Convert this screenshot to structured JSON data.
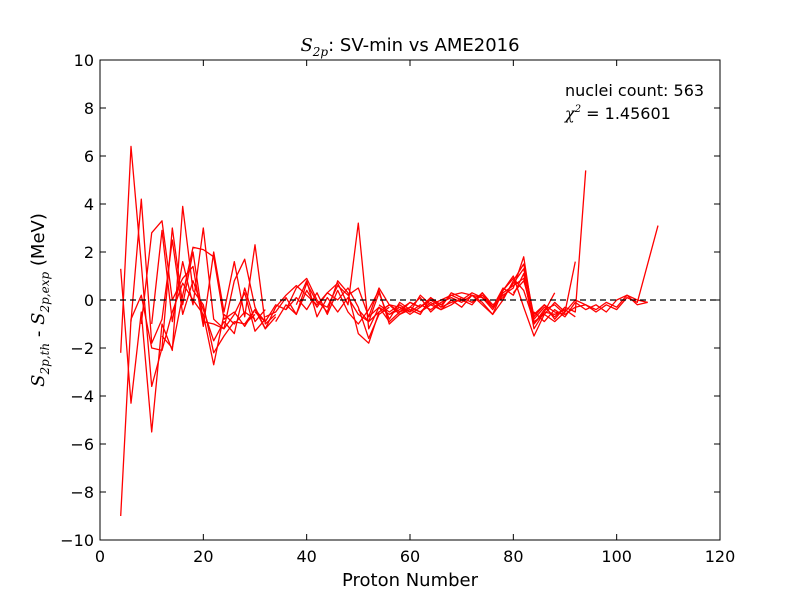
{
  "chart_data": {
    "type": "line",
    "title_symbol": "S",
    "title_symbol_sub": "2p",
    "title": "SV-min vs AME2016",
    "xlabel": "Proton Number",
    "ylabel_symbol": "S",
    "ylabel_sub_th": "2p,th",
    "ylabel_sub_exp": "2p,exp",
    "ylabel_unit": "(MeV)",
    "xlim": [
      0,
      120
    ],
    "ylim": [
      -10,
      10
    ],
    "xticks": [
      0,
      20,
      40,
      60,
      80,
      100,
      120
    ],
    "yticks": [
      -10,
      -8,
      -6,
      -4,
      -2,
      0,
      2,
      4,
      6,
      8,
      10
    ],
    "reference_line": 0,
    "annotations": {
      "count": "nuclei count: 563",
      "chi2_symbol": "χ",
      "chi2_power": "2",
      "chi2_value": "= 1.45601"
    },
    "series_color": "#ff0000",
    "series": [
      {
        "name": "isotone-chain-1",
        "x": [
          4,
          6,
          8,
          10,
          12,
          14,
          16,
          18,
          20,
          22,
          24,
          26,
          28,
          30
        ],
        "y": [
          -9.0,
          -0.8,
          0.2,
          -2.0,
          -2.1,
          -0.5,
          0.7,
          0.0,
          -0.6,
          -2.7,
          -0.6,
          -1.0,
          -0.5,
          -0.8
        ]
      },
      {
        "name": "isotone-chain-2",
        "x": [
          4,
          6,
          8,
          10,
          12,
          14,
          16,
          18,
          20,
          22,
          24,
          26,
          28,
          30
        ],
        "y": [
          1.3,
          -4.3,
          -0.5,
          -5.5,
          -1.0,
          -2.1,
          3.9,
          0.4,
          -0.2,
          -2.2,
          -1.5,
          -0.9,
          -1.0,
          -0.6
        ]
      },
      {
        "name": "isotone-chain-3",
        "x": [
          4,
          6,
          8,
          10,
          12,
          14,
          16,
          18,
          20,
          22,
          24,
          26,
          28,
          30,
          32
        ],
        "y": [
          -2.2,
          6.4,
          1.5,
          -3.6,
          -2.0,
          3.0,
          -0.2,
          2.0,
          -0.9,
          -1.0,
          -1.2,
          -0.6,
          0.3,
          -1.3,
          -0.8
        ]
      },
      {
        "name": "isotone-chain-4",
        "x": [
          6,
          8,
          10,
          12,
          14,
          16,
          18,
          20,
          22,
          24,
          26,
          28,
          30,
          32
        ],
        "y": [
          -0.9,
          4.2,
          -1.8,
          -0.8,
          2.5,
          -0.6,
          0.8,
          -0.4,
          -1.7,
          -0.9,
          -1.4,
          0.5,
          -0.9,
          -0.4
        ]
      },
      {
        "name": "isotone-chain-5",
        "x": [
          8,
          10,
          12,
          14,
          16,
          18,
          20,
          22,
          24,
          26,
          28,
          30,
          32,
          34
        ],
        "y": [
          -1.0,
          2.8,
          3.3,
          0.0,
          0.9,
          1.4,
          -1.1,
          2.0,
          -0.5,
          1.6,
          -0.7,
          2.3,
          -1.0,
          -0.6
        ]
      },
      {
        "name": "isotone-chain-6",
        "x": [
          10,
          12,
          14,
          16,
          18,
          20,
          22,
          24,
          26,
          28,
          30,
          32,
          34
        ],
        "y": [
          -1.0,
          2.9,
          -0.9,
          1.6,
          -0.2,
          3.0,
          -0.8,
          -1.2,
          0.8,
          1.7,
          -0.3,
          -1.2,
          -0.7
        ]
      },
      {
        "name": "isotone-chain-7",
        "x": [
          12,
          14,
          16,
          18,
          20,
          22,
          24,
          26,
          28,
          30,
          32
        ],
        "y": [
          -1.5,
          -2.0,
          0.2,
          2.2,
          2.1,
          1.8,
          -0.8,
          -0.5,
          -1.1,
          -0.4,
          -0.9
        ]
      },
      {
        "name": "isotone-chain-8",
        "x": [
          28,
          30,
          32,
          34,
          36,
          38,
          40,
          42,
          44,
          46,
          48,
          50,
          52,
          54,
          56
        ],
        "y": [
          -1.0,
          -0.4,
          -1.2,
          -0.3,
          0.2,
          0.6,
          0.2,
          -0.2,
          0.3,
          0.0,
          0.5,
          -0.3,
          -1.6,
          -0.6,
          -0.3
        ]
      },
      {
        "name": "isotone-chain-9",
        "x": [
          30,
          32,
          34,
          36,
          38,
          40,
          42,
          44,
          46,
          48,
          50,
          52,
          54,
          56,
          58,
          60
        ],
        "y": [
          -0.5,
          -0.9,
          -0.2,
          -0.4,
          0.5,
          0.9,
          0.0,
          -0.5,
          0.8,
          0.3,
          -1.4,
          -1.8,
          -0.5,
          -0.2,
          -0.6,
          -0.4
        ]
      },
      {
        "name": "isotone-chain-10",
        "x": [
          32,
          34,
          36,
          38,
          40,
          42,
          44,
          46,
          48,
          50,
          52,
          54,
          56,
          58,
          60,
          62
        ],
        "y": [
          -0.7,
          -0.5,
          0.1,
          -0.6,
          0.4,
          -0.3,
          0.3,
          0.7,
          -0.2,
          3.2,
          -1.2,
          -0.3,
          -0.9,
          -0.5,
          -0.1,
          -0.3
        ]
      },
      {
        "name": "isotone-chain-11",
        "x": [
          34,
          36,
          38,
          40,
          42,
          44,
          46,
          48,
          50,
          52,
          54,
          56,
          58,
          60,
          62,
          64
        ],
        "y": [
          -0.9,
          -0.2,
          -0.6,
          0.7,
          -0.1,
          -0.3,
          0.6,
          0.2,
          0.5,
          -0.7,
          0.5,
          -0.2,
          -0.3,
          -0.5,
          0.2,
          -0.2
        ]
      },
      {
        "name": "isotone-chain-12",
        "x": [
          36,
          38,
          40,
          42,
          44,
          46,
          48,
          50,
          52,
          54,
          56,
          58,
          60,
          62,
          64,
          66
        ],
        "y": [
          -0.4,
          0.1,
          -0.4,
          0.3,
          -0.6,
          0.4,
          -0.5,
          -1.0,
          -0.4,
          0.4,
          -1.0,
          -0.6,
          -0.3,
          0.1,
          -0.5,
          -0.1
        ]
      },
      {
        "name": "isotone-chain-13",
        "x": [
          38,
          40,
          42,
          44,
          46,
          48,
          50,
          52,
          54,
          56,
          58,
          60,
          62,
          64,
          66,
          68,
          70
        ],
        "y": [
          -0.2,
          0.8,
          -0.7,
          0.1,
          -0.5,
          0.1,
          -0.6,
          -0.9,
          0.3,
          -0.8,
          -0.1,
          -0.4,
          -0.6,
          0.1,
          -0.3,
          0.3,
          0.1
        ]
      },
      {
        "name": "isotone-chain-14",
        "x": [
          50,
          52,
          54,
          56,
          58,
          60,
          62,
          64,
          66,
          68,
          70,
          72,
          74,
          76,
          78,
          80,
          82,
          84,
          86,
          88,
          90,
          92
        ],
        "y": [
          -0.4,
          -0.9,
          -0.5,
          -0.2,
          -0.5,
          -0.3,
          -0.5,
          -0.2,
          0.0,
          0.2,
          0.3,
          0.2,
          0.1,
          -0.4,
          0.3,
          0.6,
          0.9,
          -1.0,
          -0.5,
          -0.6,
          -0.4,
          -0.7
        ]
      },
      {
        "name": "isotone-chain-15",
        "x": [
          52,
          54,
          56,
          58,
          60,
          62,
          64,
          66,
          68,
          70,
          72,
          74,
          76,
          78,
          80,
          82,
          84,
          86,
          88,
          90,
          92,
          94
        ],
        "y": [
          -0.7,
          -0.3,
          -0.6,
          -0.4,
          -0.1,
          -0.3,
          0.0,
          -0.3,
          -0.1,
          0.0,
          -0.2,
          0.3,
          -0.2,
          0.1,
          0.7,
          1.3,
          -0.8,
          -0.3,
          -0.7,
          -0.3,
          -0.5,
          5.4
        ]
      },
      {
        "name": "isotone-chain-16",
        "x": [
          54,
          56,
          58,
          60,
          62,
          64,
          66,
          68,
          70,
          72,
          74,
          76,
          78,
          80,
          82,
          84,
          86,
          88,
          90,
          92
        ],
        "y": [
          -0.2,
          -0.5,
          -0.2,
          -0.5,
          -0.2,
          -0.4,
          -0.1,
          0.1,
          -0.1,
          0.2,
          -0.1,
          -0.6,
          0.4,
          1.0,
          -0.3,
          -1.5,
          -0.6,
          -0.9,
          -0.5,
          1.6
        ]
      },
      {
        "name": "isotone-chain-17",
        "x": [
          56,
          58,
          60,
          62,
          64,
          66,
          68,
          70,
          72,
          74,
          76,
          78,
          80,
          82,
          84,
          86,
          88,
          90
        ],
        "y": [
          -0.6,
          -0.3,
          -0.6,
          -0.3,
          0.1,
          -0.2,
          0.2,
          0.0,
          0.3,
          0.1,
          -0.3,
          0.2,
          0.5,
          1.8,
          -1.0,
          -0.4,
          -0.2,
          -0.6
        ]
      },
      {
        "name": "isotone-chain-18",
        "x": [
          60,
          62,
          64,
          66,
          68,
          70,
          72,
          74,
          76,
          78,
          80,
          82,
          84,
          86,
          88
        ],
        "y": [
          -0.3,
          -0.5,
          -0.1,
          -0.4,
          -0.2,
          0.1,
          -0.1,
          0.3,
          -0.3,
          0.5,
          0.2,
          1.1,
          -1.2,
          -0.5,
          0.3
        ]
      },
      {
        "name": "isotone-chain-19",
        "x": [
          64,
          66,
          68,
          70,
          72,
          74,
          76,
          78,
          80,
          82,
          84,
          86,
          88,
          90
        ],
        "y": [
          -0.2,
          -0.4,
          0.0,
          -0.3,
          0.2,
          -0.2,
          -0.6,
          0.0,
          0.8,
          1.5,
          -0.7,
          -0.2,
          -0.8,
          -0.3
        ]
      },
      {
        "name": "isotone-chain-20",
        "x": [
          72,
          74,
          76,
          78,
          80,
          82,
          84,
          86,
          88,
          90,
          92,
          94,
          96,
          98,
          100,
          102,
          104,
          106
        ],
        "y": [
          -0.1,
          0.2,
          -0.3,
          0.4,
          0.9,
          0.4,
          -0.9,
          -0.6,
          -0.1,
          -0.5,
          0.0,
          -0.2,
          -0.4,
          -0.1,
          -0.3,
          0.2,
          0.0,
          -0.1
        ]
      },
      {
        "name": "isotone-chain-21",
        "x": [
          80,
          82,
          84,
          86,
          88,
          90,
          92,
          94,
          96,
          98,
          100,
          102,
          104,
          108
        ],
        "y": [
          0.3,
          0.8,
          -0.6,
          -0.2,
          -0.5,
          -0.6,
          -0.3,
          -0.2,
          -0.5,
          -0.2,
          -0.4,
          0.1,
          -0.1,
          3.1
        ]
      },
      {
        "name": "isotone-chain-22",
        "x": [
          84,
          86,
          88,
          90,
          92,
          94,
          96,
          98,
          100,
          102,
          104,
          106
        ],
        "y": [
          -0.5,
          -0.9,
          -0.4,
          -0.7,
          -0.1,
          -0.4,
          -0.2,
          -0.5,
          0.0,
          0.2,
          -0.2,
          -0.1
        ]
      }
    ]
  }
}
